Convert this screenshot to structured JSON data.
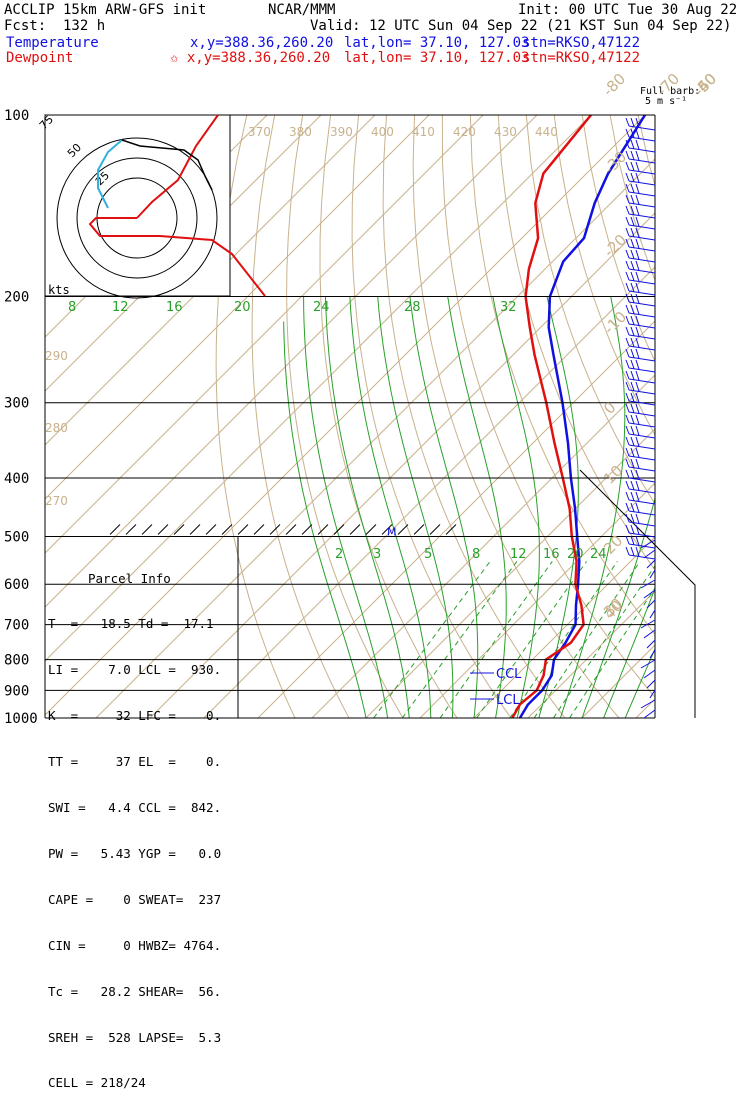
{
  "header": {
    "left1": "ACCLIP 15km ARW-GFS init",
    "left2": "Fcst:  132 h",
    "center1": "NCAR/MMM",
    "center2": "Valid: 12 UTC Sun 04 Sep 22 (21 KST Sun 04 Sep 22)",
    "init": "Init: 00 UTC Tue 30 Aug 22",
    "temp_label": "Temperature",
    "temp_xy": "x,y=388.36,260.20",
    "temp_latlon": "lat,lon= 37.10, 127.03",
    "temp_stn": "stn=RKSO,47122",
    "dew_label": "Dewpoint",
    "dew_xy": "✩ x,y=388.36,260.20",
    "dew_latlon": "lat,lon= 37.10, 127.03",
    "dew_stn": "stn=RKSO,47122",
    "barb_title": "Full barb:",
    "barb_units": "5 m s⁻¹"
  },
  "parcel": {
    "title": "Parcel Info",
    "rows": [
      "T  =   18.5 Td =  17.1",
      "LI =    7.0 LCL =  930.",
      "K  =     32 LFC =    0.",
      "TT =     37 EL  =    0.",
      "SWI =   4.4 CCL =  842.",
      "PW =   5.43 YGP =   0.0",
      "CAPE =    0 SWEAT=  237",
      "CIN =     0 HWBZ= 4764.",
      "Tc =   28.2 SHEAR=  56.",
      "SREH =  528 LAPSE=  5.3",
      "CELL = 218/24"
    ]
  },
  "chart_data": {
    "type": "line",
    "title": "",
    "ylabel": "",
    "pressure_ticks": [
      100,
      200,
      300,
      400,
      500,
      600,
      700,
      800,
      900,
      1000
    ],
    "isotherm_labels": [
      "-80",
      "-70",
      "-60",
      "-50",
      "-40",
      "-30",
      "-20",
      "-10",
      "0",
      "10",
      "20",
      "30",
      "40"
    ],
    "theta_labels": [
      "370",
      "380",
      "390",
      "400",
      "410",
      "420",
      "430",
      "440"
    ],
    "theta_side_labels": [
      "290",
      "280",
      "270"
    ],
    "mixing_upper_labels": [
      "8",
      "12",
      "16",
      "20",
      "24",
      "28",
      "32"
    ],
    "mixing_lower_labels": [
      "2",
      "3",
      "5",
      "8",
      "12",
      "16",
      "20",
      "24"
    ],
    "series": [
      {
        "name": "Temperature",
        "color": "#1010e0",
        "p": [
          1000,
          950,
          900,
          850,
          800,
          750,
          700,
          650,
          600,
          550,
          500,
          450,
          400,
          350,
          300,
          250,
          225,
          200,
          175,
          160,
          140,
          125,
          100
        ],
        "t": [
          18.5,
          17.5,
          17.5,
          16.5,
          14.0,
          13.0,
          11.5,
          8.0,
          4.5,
          0.5,
          -4.5,
          -10.0,
          -16.5,
          -23.5,
          -32.0,
          -42.5,
          -48.5,
          -54.0,
          -58.0,
          -58.5,
          -63.0,
          -66.0,
          -70.0
        ]
      },
      {
        "name": "Dewpoint",
        "color": "#e01010",
        "p": [
          1000,
          950,
          900,
          850,
          800,
          750,
          700,
          650,
          600,
          550,
          500,
          450,
          400,
          350,
          300,
          250,
          225,
          200,
          180,
          160,
          140,
          125,
          100
        ],
        "t": [
          17.1,
          16.0,
          16.5,
          15.0,
          12.5,
          14.0,
          13.0,
          9.0,
          4.0,
          0.0,
          -5.5,
          -11.0,
          -18.0,
          -26.0,
          -35.0,
          -46.0,
          -52.0,
          -58.5,
          -63.0,
          -67.0,
          -74.0,
          -78.0,
          -80.0
        ]
      }
    ],
    "parcel_markers": [
      {
        "label": "CCL",
        "p": 842
      },
      {
        "label": "LCL",
        "p": 930
      },
      {
        "label": "M",
        "p": 500
      }
    ],
    "hodograph": {
      "rings_kts": [
        25,
        50,
        75
      ],
      "ring_labels": [
        "25",
        "50",
        "75"
      ],
      "units": "kts"
    }
  }
}
